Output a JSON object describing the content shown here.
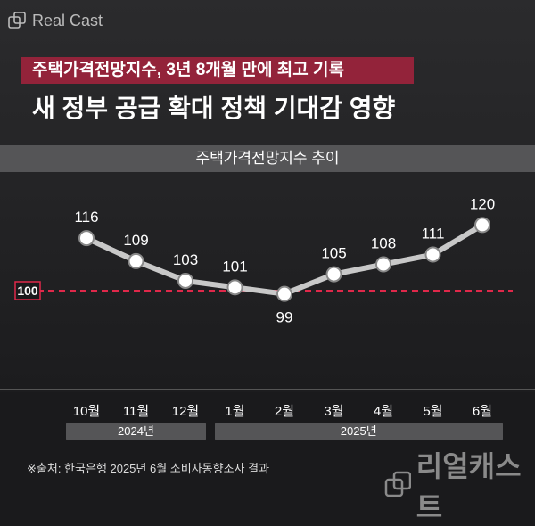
{
  "logo": "Real Cast",
  "subtitle": "주택가격전망지수, 3년 8개월 만에 최고 기록",
  "title": "새 정부 공급 확대 정책 기대감 영향",
  "chart_data": {
    "type": "line",
    "title": "주택가격전망지수 추이",
    "categories": [
      "10월",
      "11월",
      "12월",
      "1월",
      "2월",
      "3월",
      "4월",
      "5월",
      "6월"
    ],
    "values": [
      116,
      109,
      103,
      101,
      99,
      105,
      108,
      111,
      120
    ],
    "reference_line": {
      "value": 100,
      "label": "100",
      "color": "#e0284a"
    },
    "year_groups": [
      {
        "label": "2024년",
        "months": 3
      },
      {
        "label": "2025년",
        "months": 6
      }
    ],
    "ylim": [
      95,
      122
    ]
  },
  "source": "※출처: 한국은행 2025년 6월 소비자동향조사 결과",
  "watermark": "리얼캐스트"
}
